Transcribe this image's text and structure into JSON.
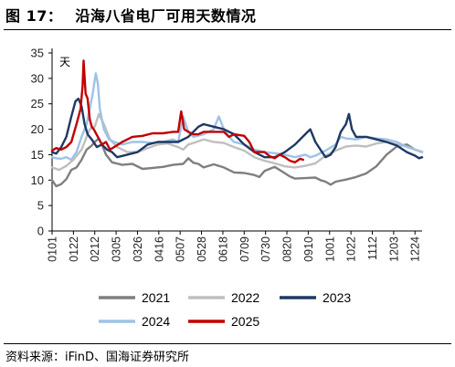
{
  "header": {
    "figure_number": "图 17：",
    "title": "沿海八省电厂可用天数情况"
  },
  "source": "资料来源：iFinD、国海证券研究所",
  "chart_data": {
    "type": "line",
    "y_unit": "天",
    "ylim": [
      0,
      35
    ],
    "yticks": [
      0,
      5,
      10,
      15,
      20,
      25,
      30,
      35
    ],
    "x_tick_labels": [
      "0101",
      "0122",
      "0212",
      "0305",
      "0326",
      "0416",
      "0507",
      "0528",
      "0618",
      "0709",
      "0730",
      "0820",
      "0910",
      "1001",
      "1022",
      "1112",
      "1203",
      "1224"
    ],
    "x_tick_days": [
      1,
      22,
      43,
      64,
      85,
      106,
      127,
      148,
      169,
      190,
      211,
      232,
      253,
      274,
      295,
      316,
      337,
      358
    ],
    "xlim": [
      1,
      365
    ],
    "legend_position": "bottom",
    "series": [
      {
        "name": "2021",
        "color": "#7f7f7f",
        "points": [
          [
            1,
            10
          ],
          [
            5,
            8.8
          ],
          [
            10,
            9.2
          ],
          [
            15,
            10.2
          ],
          [
            20,
            12
          ],
          [
            25,
            12.5
          ],
          [
            30,
            14
          ],
          [
            35,
            16
          ],
          [
            40,
            16.8
          ],
          [
            43,
            17.5
          ],
          [
            47,
            18.2
          ],
          [
            50,
            17
          ],
          [
            54,
            15
          ],
          [
            60,
            13.5
          ],
          [
            70,
            13
          ],
          [
            80,
            13.2
          ],
          [
            90,
            12.2
          ],
          [
            100,
            12.4
          ],
          [
            110,
            12.6
          ],
          [
            120,
            13
          ],
          [
            130,
            13.2
          ],
          [
            135,
            14.3
          ],
          [
            140,
            13.4
          ],
          [
            145,
            13.2
          ],
          [
            150,
            12.5
          ],
          [
            160,
            13.1
          ],
          [
            170,
            12.5
          ],
          [
            180,
            11.5
          ],
          [
            190,
            11.4
          ],
          [
            200,
            11
          ],
          [
            205,
            10.6
          ],
          [
            210,
            11.8
          ],
          [
            220,
            12.6
          ],
          [
            228,
            11.6
          ],
          [
            235,
            10.7
          ],
          [
            240,
            10.3
          ],
          [
            250,
            10.4
          ],
          [
            260,
            10.5
          ],
          [
            265,
            10
          ],
          [
            270,
            9.7
          ],
          [
            275,
            9.1
          ],
          [
            280,
            9.7
          ],
          [
            290,
            10.1
          ],
          [
            300,
            10.6
          ],
          [
            310,
            11.3
          ],
          [
            320,
            12.7
          ],
          [
            330,
            15
          ],
          [
            340,
            16.6
          ],
          [
            350,
            17
          ],
          [
            358,
            16
          ],
          [
            365,
            15.5
          ]
        ]
      },
      {
        "name": "2022",
        "color": "#bfbfbf",
        "points": [
          [
            1,
            12.5
          ],
          [
            8,
            12
          ],
          [
            15,
            12.8
          ],
          [
            22,
            14
          ],
          [
            30,
            16
          ],
          [
            38,
            20
          ],
          [
            43,
            20.5
          ],
          [
            47,
            23
          ],
          [
            52,
            21
          ],
          [
            58,
            18
          ],
          [
            65,
            16.5
          ],
          [
            75,
            15.5
          ],
          [
            85,
            15.5
          ],
          [
            95,
            16.3
          ],
          [
            105,
            17
          ],
          [
            115,
            17.2
          ],
          [
            125,
            16.5
          ],
          [
            130,
            16
          ],
          [
            135,
            17
          ],
          [
            140,
            17.3
          ],
          [
            150,
            18
          ],
          [
            160,
            17.5
          ],
          [
            170,
            17.3
          ],
          [
            180,
            16.5
          ],
          [
            190,
            15.8
          ],
          [
            200,
            14.5
          ],
          [
            210,
            13.8
          ],
          [
            220,
            13.3
          ],
          [
            230,
            12.7
          ],
          [
            240,
            12.5
          ],
          [
            250,
            12.8
          ],
          [
            260,
            13.3
          ],
          [
            270,
            14.8
          ],
          [
            280,
            15.8
          ],
          [
            290,
            16.6
          ],
          [
            300,
            16.8
          ],
          [
            310,
            16.6
          ],
          [
            320,
            17.2
          ],
          [
            330,
            17.5
          ],
          [
            340,
            17
          ],
          [
            350,
            16.6
          ],
          [
            358,
            16
          ],
          [
            365,
            15.6
          ]
        ]
      },
      {
        "name": "2023",
        "color": "#1f3864",
        "points": [
          [
            1,
            15.5
          ],
          [
            5,
            15.2
          ],
          [
            10,
            16.5
          ],
          [
            15,
            18.5
          ],
          [
            20,
            22.5
          ],
          [
            24,
            25.5
          ],
          [
            27,
            26
          ],
          [
            30,
            24.5
          ],
          [
            33,
            21
          ],
          [
            36,
            19
          ],
          [
            40,
            18
          ],
          [
            45,
            16.5
          ],
          [
            50,
            17
          ],
          [
            55,
            16
          ],
          [
            60,
            15.5
          ],
          [
            65,
            14.5
          ],
          [
            75,
            15
          ],
          [
            85,
            15.5
          ],
          [
            95,
            17
          ],
          [
            105,
            17.5
          ],
          [
            115,
            17.5
          ],
          [
            125,
            17.5
          ],
          [
            135,
            18.5
          ],
          [
            145,
            20.5
          ],
          [
            150,
            21
          ],
          [
            160,
            20.5
          ],
          [
            170,
            20
          ],
          [
            180,
            19
          ],
          [
            190,
            17
          ],
          [
            200,
            15.5
          ],
          [
            210,
            14.5
          ],
          [
            220,
            14.5
          ],
          [
            230,
            15.5
          ],
          [
            240,
            17
          ],
          [
            250,
            19
          ],
          [
            255,
            20
          ],
          [
            260,
            17.5
          ],
          [
            265,
            16
          ],
          [
            270,
            14.5
          ],
          [
            275,
            15
          ],
          [
            280,
            16.5
          ],
          [
            285,
            19.5
          ],
          [
            290,
            21
          ],
          [
            293,
            23
          ],
          [
            296,
            20
          ],
          [
            300,
            18.5
          ],
          [
            310,
            18.5
          ],
          [
            320,
            18
          ],
          [
            330,
            17.5
          ],
          [
            340,
            16.8
          ],
          [
            350,
            15.5
          ],
          [
            358,
            14.8
          ],
          [
            362,
            14.3
          ],
          [
            365,
            14.5
          ]
        ]
      },
      {
        "name": "2024",
        "color": "#9dc3e6",
        "points": [
          [
            1,
            14.5
          ],
          [
            5,
            14.3
          ],
          [
            10,
            14.2
          ],
          [
            15,
            14.5
          ],
          [
            20,
            14
          ],
          [
            25,
            15.5
          ],
          [
            30,
            18.5
          ],
          [
            35,
            21
          ],
          [
            38,
            24
          ],
          [
            41,
            27
          ],
          [
            44,
            31
          ],
          [
            46,
            29
          ],
          [
            48,
            24
          ],
          [
            52,
            20
          ],
          [
            57,
            18
          ],
          [
            62,
            17.5
          ],
          [
            70,
            17
          ],
          [
            80,
            17.5
          ],
          [
            90,
            17.5
          ],
          [
            100,
            17.3
          ],
          [
            110,
            17.5
          ],
          [
            120,
            18
          ],
          [
            125,
            17.5
          ],
          [
            130,
            22.5
          ],
          [
            135,
            19.5
          ],
          [
            140,
            18.5
          ],
          [
            150,
            19
          ],
          [
            160,
            20
          ],
          [
            165,
            22.5
          ],
          [
            170,
            20
          ],
          [
            175,
            18.5
          ],
          [
            180,
            17.5
          ],
          [
            190,
            17
          ],
          [
            200,
            16
          ],
          [
            210,
            15.5
          ],
          [
            220,
            15.3
          ],
          [
            230,
            15
          ],
          [
            240,
            14.5
          ],
          [
            250,
            15
          ],
          [
            255,
            14.5
          ],
          [
            260,
            14.8
          ],
          [
            270,
            15.8
          ],
          [
            280,
            17
          ],
          [
            285,
            18.5
          ],
          [
            290,
            18.2
          ],
          [
            300,
            18
          ],
          [
            310,
            18.5
          ],
          [
            320,
            18.2
          ],
          [
            330,
            18
          ],
          [
            340,
            17.5
          ],
          [
            350,
            16.5
          ],
          [
            358,
            16
          ],
          [
            365,
            15.5
          ]
        ]
      },
      {
        "name": "2025",
        "color": "#c00000",
        "points": [
          [
            1,
            15.8
          ],
          [
            5,
            16.3
          ],
          [
            10,
            16
          ],
          [
            15,
            16.5
          ],
          [
            20,
            17.5
          ],
          [
            25,
            21
          ],
          [
            29,
            24
          ],
          [
            31,
            28.5
          ],
          [
            32,
            33.5
          ],
          [
            34,
            27
          ],
          [
            36,
            26
          ],
          [
            38,
            22
          ],
          [
            40,
            20.5
          ],
          [
            42,
            20
          ],
          [
            46,
            18.5
          ],
          [
            50,
            17
          ],
          [
            54,
            17.5
          ],
          [
            58,
            16
          ],
          [
            62,
            16.5
          ],
          [
            70,
            17.5
          ],
          [
            80,
            18.5
          ],
          [
            90,
            18.7
          ],
          [
            100,
            19.2
          ],
          [
            110,
            19.2
          ],
          [
            120,
            19.5
          ],
          [
            125,
            19.5
          ],
          [
            128,
            23.5
          ],
          [
            131,
            20
          ],
          [
            135,
            19.5
          ],
          [
            140,
            19
          ],
          [
            145,
            19
          ],
          [
            150,
            19.5
          ],
          [
            160,
            19.5
          ],
          [
            170,
            19.5
          ],
          [
            175,
            18.5
          ],
          [
            180,
            19
          ],
          [
            190,
            18.7
          ],
          [
            195,
            17.5
          ],
          [
            200,
            15.5
          ],
          [
            210,
            15.5
          ],
          [
            215,
            14.7
          ],
          [
            220,
            14.3
          ],
          [
            225,
            15
          ],
          [
            230,
            14.5
          ],
          [
            235,
            13.8
          ],
          [
            240,
            13.5
          ],
          [
            245,
            14.2
          ],
          [
            248,
            14
          ]
        ]
      }
    ]
  }
}
